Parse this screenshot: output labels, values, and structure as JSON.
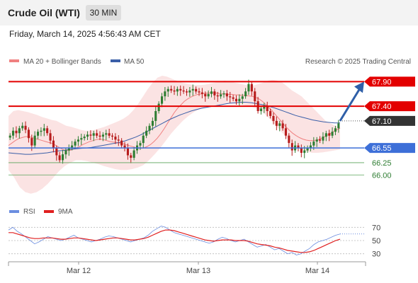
{
  "header": {
    "title": "Crude Oil (WTI)",
    "timeframe": "30 MIN"
  },
  "timestamp": "Friday, March 14, 2025 4:56:43 AM CET",
  "legend": {
    "ma20_bb": "MA 20 + Bollinger Bands",
    "ma50": "MA 50",
    "credit": "Research © 2025 Trading Central",
    "rsi": "RSI",
    "rsi_ma": "9MA"
  },
  "colors": {
    "up": "#2e7d32",
    "down": "#b71c1c",
    "ma20": "#f08080",
    "band_fill": "#fbe3e3",
    "ma50": "#3b5fa8",
    "resistance": "#e30000",
    "support": "#3d6fd8",
    "target": "#5aa35a",
    "current": "#333333",
    "arrow": "#2f5fa8",
    "rsi": "#6b8de0",
    "rsi_ma": "#e02020"
  },
  "chart_data": [
    {
      "type": "candlestick",
      "title": "",
      "ylim": [
        65.5,
        68.15
      ],
      "x_ticks": [
        "Mar 12",
        "Mar 13",
        "Mar 14"
      ],
      "levels": [
        {
          "label": "67.90",
          "value": 67.9,
          "kind": "resistance"
        },
        {
          "label": "67.40",
          "value": 67.4,
          "kind": "resistance"
        },
        {
          "label": "67.10",
          "value": 67.1,
          "kind": "current"
        },
        {
          "label": "66.55",
          "value": 66.55,
          "kind": "support"
        },
        {
          "label": "66.25",
          "value": 66.25,
          "kind": "target"
        },
        {
          "label": "66.00",
          "value": 66.0,
          "kind": "target"
        }
      ],
      "forecast": {
        "from": 67.1,
        "to": 67.9
      },
      "close": [
        66.8,
        66.9,
        66.85,
        66.95,
        67.0,
        66.92,
        66.75,
        66.6,
        66.8,
        66.88,
        66.9,
        66.95,
        66.85,
        66.7,
        66.55,
        66.4,
        66.3,
        66.42,
        66.5,
        66.55,
        66.6,
        66.68,
        66.72,
        66.75,
        66.78,
        66.82,
        66.8,
        66.85,
        66.8,
        66.78,
        66.82,
        66.85,
        66.8,
        66.78,
        66.72,
        66.7,
        66.6,
        66.55,
        66.4,
        66.35,
        66.5,
        66.6,
        66.65,
        66.8,
        66.9,
        67.0,
        67.1,
        67.3,
        67.45,
        67.6,
        67.7,
        67.75,
        67.72,
        67.7,
        67.75,
        67.72,
        67.7,
        67.68,
        67.72,
        67.75,
        67.7,
        67.68,
        67.65,
        67.6,
        67.65,
        67.7,
        67.62,
        67.6,
        67.64,
        67.66,
        67.6,
        67.58,
        67.55,
        67.5,
        67.55,
        67.6,
        67.7,
        67.85,
        67.7,
        67.5,
        67.3,
        67.35,
        67.4,
        67.3,
        67.2,
        67.1,
        67.0,
        67.05,
        66.95,
        66.8,
        66.65,
        66.5,
        66.6,
        66.55,
        66.45,
        66.5,
        66.55,
        66.6,
        66.68,
        66.72,
        66.7,
        66.78,
        66.85,
        66.8,
        66.88,
        66.95,
        67.05
      ],
      "ma20": [
        66.6,
        66.65,
        66.7,
        66.74,
        66.76,
        66.78,
        66.78,
        66.76,
        66.74,
        66.72,
        66.7,
        66.68,
        66.66,
        66.64,
        66.6,
        66.56,
        66.52,
        66.5,
        66.5,
        66.52,
        66.55,
        66.58,
        66.62,
        66.65,
        66.68,
        66.7,
        66.72,
        66.73,
        66.72,
        66.7,
        66.68,
        66.67,
        66.66,
        66.65,
        66.63,
        66.61,
        66.59,
        66.57,
        66.55,
        66.54,
        66.55,
        66.58,
        66.62,
        66.68,
        66.75,
        66.84,
        66.94,
        67.05,
        67.16,
        67.27,
        67.36,
        67.43,
        67.5,
        67.55,
        67.59,
        67.62,
        67.64,
        67.65,
        67.66,
        67.67,
        67.67,
        67.67,
        67.66,
        67.65,
        67.65,
        67.64,
        67.64,
        67.63,
        67.63,
        67.62,
        67.62,
        67.61,
        67.6,
        67.58,
        67.55,
        67.5,
        67.44,
        67.37,
        67.3,
        67.22,
        67.14,
        67.06,
        66.98,
        66.91,
        66.85,
        66.8,
        66.76,
        66.73,
        66.71,
        66.7,
        66.7,
        66.71,
        66.73,
        66.76,
        66.8,
        66.84,
        66.88,
        66.92,
        66.95
      ],
      "ma50": [
        66.45,
        66.44,
        66.43,
        66.42,
        66.42,
        66.43,
        66.44,
        66.45,
        66.47,
        66.49,
        66.5,
        66.52,
        66.53,
        66.54,
        66.55,
        66.56,
        66.58,
        66.6,
        66.62,
        66.64,
        66.66,
        66.69,
        66.73,
        66.77,
        66.82,
        66.88,
        66.94,
        67.0,
        67.06,
        67.12,
        67.17,
        67.22,
        67.26,
        67.3,
        67.33,
        67.36,
        67.38,
        67.4,
        67.42,
        67.44,
        67.46,
        67.47,
        67.48,
        67.48,
        67.47,
        67.45,
        67.43,
        67.4,
        67.37,
        67.33,
        67.29,
        67.25,
        67.21,
        67.18,
        67.15,
        67.12,
        67.1,
        67.08,
        67.07,
        67.06,
        67.06
      ],
      "bb_upper": [
        67.2,
        67.3,
        67.32,
        67.3,
        67.28,
        67.25,
        67.22,
        67.18,
        67.15,
        67.12,
        67.1,
        67.05,
        67.0,
        66.98,
        66.95,
        66.92,
        66.9,
        66.9,
        66.92,
        66.95,
        66.98,
        67.02,
        67.06,
        67.1,
        67.15,
        67.22,
        67.32,
        67.45,
        67.6,
        67.75,
        67.88,
        67.98,
        68.02,
        68.0,
        67.96,
        67.92,
        67.88,
        67.86,
        67.84,
        67.83,
        67.83,
        67.84,
        67.86,
        67.88,
        67.9,
        67.92,
        67.9,
        67.88,
        67.86,
        67.84,
        67.82,
        67.82,
        67.85,
        67.88,
        67.92,
        67.94,
        67.92,
        67.88,
        67.8,
        67.72,
        67.66,
        67.6,
        67.5,
        67.4,
        67.3,
        67.2,
        67.1,
        67.05,
        67.0,
        66.98
      ],
      "bb_lower": [
        66.1,
        65.95,
        65.75,
        65.65,
        65.62,
        65.65,
        65.72,
        65.82,
        65.95,
        66.08,
        66.18,
        66.25,
        66.3,
        66.3,
        66.28,
        66.25,
        66.22,
        66.18,
        66.15,
        66.12,
        66.1,
        66.1,
        66.12,
        66.15,
        66.2,
        66.3,
        66.42,
        66.55,
        66.7,
        66.85,
        66.98,
        67.1,
        67.2,
        67.28,
        67.34,
        67.38,
        67.4,
        67.42,
        67.44,
        67.45,
        67.45,
        67.44,
        67.42,
        67.4,
        67.36,
        67.3,
        67.2,
        67.08,
        66.95,
        66.82,
        66.7,
        66.6,
        66.52,
        66.48,
        66.45,
        66.45,
        66.46,
        66.48,
        66.5,
        66.52
      ]
    },
    {
      "type": "line",
      "title": "",
      "ylim": [
        20,
        80
      ],
      "y_ticks": [
        70,
        50,
        30
      ],
      "series": [
        {
          "name": "RSI",
          "values": [
            66,
            70,
            64,
            60,
            55,
            50,
            45,
            48,
            52,
            56,
            54,
            52,
            50,
            52,
            55,
            58,
            54,
            52,
            50,
            48,
            50,
            52,
            55,
            57,
            56,
            54,
            52,
            50,
            48,
            50,
            52,
            54,
            58,
            64,
            68,
            72,
            70,
            66,
            62,
            60,
            58,
            56,
            54,
            52,
            50,
            48,
            46,
            48,
            52,
            55,
            53,
            50,
            48,
            50,
            52,
            48,
            44,
            40,
            42,
            44,
            40,
            36,
            38,
            34,
            30,
            32,
            28,
            30,
            34,
            38,
            44,
            48,
            50,
            52,
            55,
            58,
            60
          ]
        },
        {
          "name": "9MA",
          "values": [
            62,
            62,
            60,
            58,
            56,
            54,
            53,
            53,
            54,
            54,
            54,
            53,
            52,
            52,
            53,
            54,
            54,
            53,
            52,
            51,
            50,
            51,
            52,
            53,
            54,
            54,
            53,
            52,
            51,
            51,
            52,
            53,
            55,
            58,
            61,
            64,
            66,
            66,
            65,
            63,
            61,
            59,
            57,
            55,
            53,
            51,
            50,
            49,
            50,
            51,
            51,
            51,
            50,
            50,
            50,
            49,
            47,
            45,
            44,
            43,
            42,
            40,
            39,
            37,
            35,
            34,
            33,
            32,
            32,
            33,
            35,
            38,
            41,
            44,
            47,
            50,
            52
          ]
        }
      ],
      "levels": [
        70,
        50,
        30
      ]
    }
  ]
}
